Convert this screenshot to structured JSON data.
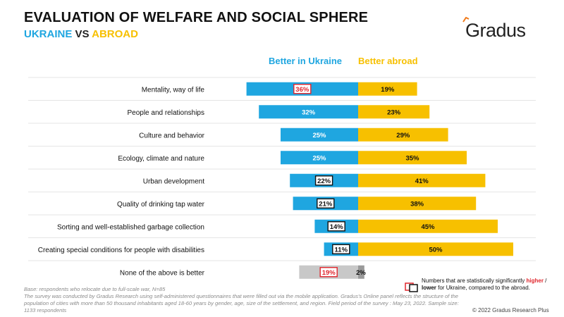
{
  "header": {
    "title": "EVALUATION OF WELFARE AND SOCIAL SPHERE",
    "subtitle_ukraine": "UKRAINE",
    "subtitle_vs": " VS ",
    "subtitle_abroad": "ABROAD",
    "logo": "Gradus"
  },
  "chart_data": {
    "type": "bar",
    "orientation": "horizontal-diverging",
    "categories": [
      "Mentality, way of life",
      "People and relationships",
      "Culture and behavior",
      "Ecology, climate and nature",
      "Urban development",
      "Quality of drinking tap water",
      "Sorting and well-established garbage collection",
      "Creating special conditions for people with disabilities",
      "None of the above is better"
    ],
    "series": [
      {
        "name": "Better in Ukraine",
        "color": "#1fa6e0",
        "values": [
          36,
          32,
          25,
          25,
          22,
          21,
          14,
          11,
          19
        ],
        "labels": [
          "36%",
          "32%",
          "25%",
          "25%",
          "22%",
          "21%",
          "14%",
          "11%",
          "19%"
        ],
        "significance": [
          "higher",
          null,
          null,
          null,
          "lower",
          "lower",
          "lower",
          "lower",
          "higher"
        ]
      },
      {
        "name": "Better abroad",
        "color": "#f7c000",
        "values": [
          19,
          23,
          29,
          35,
          41,
          38,
          45,
          50,
          2
        ],
        "labels": [
          "19%",
          "23%",
          "29%",
          "35%",
          "41%",
          "38%",
          "45%",
          "50%",
          "2%"
        ]
      }
    ],
    "last_row_colors": {
      "left": "#c8c8c8",
      "right": "#9a9a9a"
    }
  },
  "legend": {
    "text_pre": "Numbers that are statistically significantly ",
    "higher": "higher",
    "text_mid": " / ",
    "lower": "lower",
    "text_post": " for Ukraine, compared to the abroad."
  },
  "footnote": {
    "base": "Base: respondents who relocate due to full-scale war, N=85",
    "survey": "The survey was conducted by Gradus Research using self-administered questionnaires that were filled out via the mobile application. Gradus's Online panel reflects the structure of the population of cities with more than 50 thousand inhabitants aged 18-60 years by gender, age, size of the settlement, and region. Field period of the survey : May 23, 2022. Sample size: 1133 respondents"
  },
  "copyright": "© 2022 Gradus Research Plus"
}
